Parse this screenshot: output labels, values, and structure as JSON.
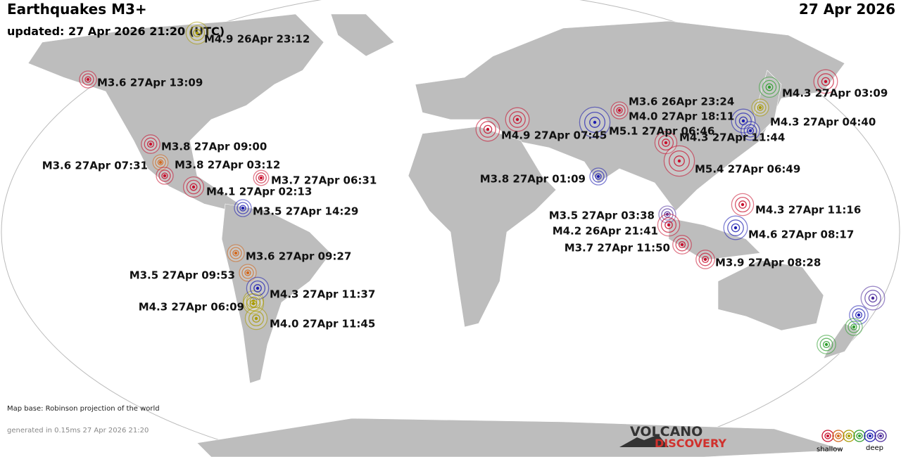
{
  "header": {
    "title": "Earthquakes M3+",
    "updated": "updated: 27 Apr 2026 21:20 (UTC)",
    "date": "27 Apr 2026"
  },
  "quakes": [
    "M4.9 26Apr 23:12",
    "M3.6 27Apr 13:09",
    "M3.8 27Apr 09:00",
    "M3.6 27Apr 07:31",
    "M3.8 27Apr 03:12",
    "M3.7 27Apr 06:31",
    "M4.1 27Apr 02:13",
    "M3.5 27Apr 14:29",
    "M3.6 27Apr 09:27",
    "M3.5 27Apr 09:53",
    "M4.3 27Apr 11:37",
    "M4.3 27Apr 06:09",
    "M4.0 27Apr 11:45",
    "M4.9 27Apr 07:45",
    "M3.6 26Apr 23:24",
    "M4.0 27Apr 18:11",
    "M5.1 27Apr 06:46",
    "M4.3 27Apr 11:44",
    "M5.4 27Apr 06:49",
    "M4.3 27Apr 03:09",
    "M4.3 27Apr 04:40",
    "M3.8 27Apr 01:09",
    "M4.3 27Apr 11:16",
    "M3.5 27Apr 03:38",
    "M4.2 26Apr 21:41",
    "M4.6 27Apr 08:17",
    "M3.7 27Apr 11:50",
    "M3.9 27Apr 08:28"
  ],
  "footer": {
    "map_base": "Map base: Robinson projection of the world",
    "generated": "generated in 0.15ms 27 Apr 2026 21:20",
    "logo_top": "VOLCANO",
    "logo_bottom": "DISCOVERY",
    "legend_shallow": "shallow",
    "legend_deep": "deep"
  }
}
